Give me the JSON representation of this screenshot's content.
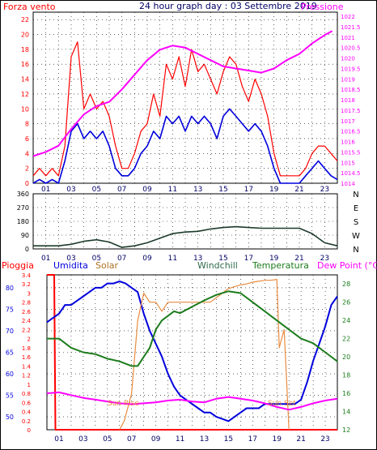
{
  "header": {
    "wind_title": "Forza vento",
    "graph_title": "24 hour graph day : 03 Settembre 2019",
    "pressure_title": "Pressione"
  },
  "legend": {
    "rain": "Pioggia",
    "humidity": "Umidita",
    "solar": "Solar",
    "windchill": "Windchill",
    "temperature": "Temperatura",
    "dewpoint": "Dew Point (°C)"
  },
  "annotations": {
    "sunrise": "Sun Rise",
    "sunset": "Sun Set"
  },
  "colors": {
    "wind": "#ff0000",
    "windavg": "#0000dd",
    "pressure": "#ff00ff",
    "direction": "#1c3c2c",
    "rain": "#ff0000",
    "humidity": "#0000dd",
    "solar": "#e88c40",
    "windchill": "#2e6b4c",
    "temperature": "#1c7c1c",
    "dewpoint": "#ff00ff",
    "grid": "#000000",
    "tick": "#000066"
  },
  "chart_data": [
    {
      "type": "line",
      "x_ticks": [
        "01",
        "03",
        "05",
        "07",
        "09",
        "11",
        "13",
        "15",
        "17",
        "19",
        "21",
        "23"
      ],
      "xlim": [
        0,
        24
      ],
      "y_left_ticks": [
        "0",
        "2",
        "4",
        "6",
        "8",
        "10",
        "12",
        "14",
        "16",
        "18",
        "20",
        "22"
      ],
      "ylim_left": [
        0,
        23
      ],
      "y_right_ticks": [
        "1014",
        "1014.5",
        "1015",
        "1015.5",
        "1016",
        "1016.5",
        "1017",
        "1017.5",
        "1018",
        "1018.5",
        "1019",
        "1019.5",
        "1020",
        "1020.5",
        "1021",
        "1021.5",
        "1022"
      ],
      "ylim_right": [
        1014,
        1022.2
      ],
      "grid": true,
      "series": [
        {
          "name": "Forza vento",
          "axis": "left",
          "x": [
            0,
            0.5,
            1,
            1.5,
            2,
            2.5,
            3,
            3.5,
            4,
            4.5,
            5,
            5.5,
            6,
            6.5,
            7,
            7.5,
            8,
            8.5,
            9,
            9.5,
            10,
            10.5,
            11,
            11.5,
            12,
            12.5,
            13,
            13.5,
            14,
            14.5,
            15,
            15.5,
            16,
            16.5,
            17,
            17.5,
            18,
            18.5,
            19,
            19.5,
            20,
            20.5,
            21,
            21.5,
            22,
            22.5,
            23,
            23.5,
            24
          ],
          "y": [
            1,
            2,
            1,
            2,
            1,
            5,
            17,
            19,
            10,
            12,
            10,
            11,
            9,
            5,
            2,
            2,
            4,
            7,
            8,
            12,
            9,
            16,
            14,
            17,
            13,
            18,
            15,
            16,
            14,
            12,
            15,
            17,
            16,
            13,
            11,
            14,
            12,
            9,
            4,
            1,
            1,
            1,
            1,
            2,
            4,
            5,
            5,
            4,
            3
          ]
        },
        {
          "name": "Vento medio",
          "axis": "left",
          "x": [
            0,
            0.5,
            1,
            1.5,
            2,
            2.5,
            3,
            3.5,
            4,
            4.5,
            5,
            5.5,
            6,
            6.5,
            7,
            7.5,
            8,
            8.5,
            9,
            9.5,
            10,
            10.5,
            11,
            11.5,
            12,
            12.5,
            13,
            13.5,
            14,
            14.5,
            15,
            15.5,
            16,
            16.5,
            17,
            17.5,
            18,
            18.5,
            19,
            19.5,
            20,
            20.5,
            21,
            21.5,
            22,
            22.5,
            23,
            23.5,
            24
          ],
          "y": [
            0,
            0.5,
            0,
            0.5,
            0,
            3,
            7,
            8,
            6,
            7,
            6,
            7,
            5,
            2,
            1,
            1,
            2,
            4,
            5,
            7,
            6,
            9,
            8,
            9,
            7,
            9,
            8,
            9,
            8,
            6,
            9,
            10,
            9,
            8,
            7,
            8,
            7,
            5,
            2,
            0,
            0,
            0,
            0,
            1,
            2,
            3,
            2,
            1,
            0.5
          ]
        },
        {
          "name": "Pressione",
          "axis": "right",
          "x": [
            0,
            1,
            2,
            3,
            4,
            5,
            6,
            7,
            8,
            9,
            10,
            11,
            12,
            13,
            14,
            15,
            16,
            17,
            18,
            19,
            20,
            21,
            22,
            23,
            23.6
          ],
          "y": [
            1015.3,
            1015.5,
            1015.8,
            1016.6,
            1017.3,
            1017.7,
            1017.9,
            1018.5,
            1019.2,
            1019.9,
            1020.4,
            1020.6,
            1020.5,
            1020.2,
            1019.9,
            1019.6,
            1019.5,
            1019.4,
            1019.3,
            1019.5,
            1019.9,
            1020.2,
            1020.7,
            1021.1,
            1021.3
          ]
        }
      ]
    },
    {
      "type": "line",
      "x_ticks": [
        "01",
        "03",
        "05",
        "07",
        "09",
        "11",
        "13",
        "15",
        "17",
        "19",
        "21",
        "23"
      ],
      "xlim": [
        0,
        24
      ],
      "y_left_ticks": [
        "0",
        "90",
        "180",
        "270",
        "360"
      ],
      "ylim": [
        0,
        360
      ],
      "y_right_labels": [
        "N",
        "W",
        "S",
        "E",
        "N"
      ],
      "grid": true,
      "series": [
        {
          "name": "Direzione vento",
          "x": [
            0,
            1,
            2,
            3,
            4,
            5,
            6,
            7,
            8,
            9,
            10,
            11,
            12,
            13,
            14,
            15,
            16,
            17,
            18,
            19,
            20,
            21,
            22,
            23,
            24
          ],
          "y": [
            20,
            20,
            20,
            30,
            50,
            60,
            45,
            10,
            20,
            40,
            70,
            100,
            110,
            115,
            130,
            140,
            145,
            140,
            135,
            135,
            135,
            135,
            100,
            40,
            20
          ]
        }
      ]
    },
    {
      "type": "line",
      "x_ticks": [
        "01",
        "03",
        "05",
        "07",
        "09",
        "11",
        "13",
        "15",
        "17",
        "19",
        "21",
        "23"
      ],
      "xlim": [
        0,
        24
      ],
      "y_rain_ticks": [
        "0",
        "0.2",
        "0.4",
        "0.6",
        "0.8",
        "1",
        "1.2",
        "1.4",
        "1.6",
        "1.8",
        "2",
        "2.2",
        "2.4",
        "2.6",
        "2.8",
        "3",
        "3.2",
        "3.4"
      ],
      "ylim_rain": [
        0,
        3.4
      ],
      "y_humidity_ticks": [
        "50",
        "55",
        "60",
        "65",
        "70",
        "75",
        "80"
      ],
      "ylim_humidity": [
        47,
        83
      ],
      "y_temperature_ticks": [
        "12",
        "14",
        "16",
        "18",
        "20",
        "22",
        "24",
        "26",
        "28"
      ],
      "ylim_temperature": [
        12,
        29
      ],
      "grid": true,
      "series": [
        {
          "name": "Pioggia",
          "axis": "rain",
          "x": [
            0,
            0.6,
            0.7,
            24
          ],
          "y": [
            3.4,
            3.4,
            0,
            0
          ]
        },
        {
          "name": "Umidita",
          "axis": "humidity",
          "x": [
            0,
            0.5,
            1,
            1.5,
            2,
            2.5,
            3,
            3.5,
            4,
            4.5,
            5,
            5.5,
            6,
            6.5,
            7,
            7.5,
            8,
            8.5,
            9,
            9.5,
            10,
            10.5,
            11,
            11.5,
            12,
            12.5,
            13,
            13.5,
            14,
            14.5,
            15,
            15.5,
            16,
            16.5,
            17,
            17.5,
            18,
            18.5,
            19,
            19.5,
            20,
            20.5,
            21,
            21.5,
            22,
            22.5,
            23,
            23.5,
            24
          ],
          "y": [
            72,
            73,
            74,
            76,
            76,
            77,
            78,
            79,
            80,
            80,
            81,
            81,
            81.5,
            81,
            80,
            79,
            74,
            70,
            67,
            64,
            60,
            57,
            55,
            54,
            53,
            52,
            51,
            51,
            50,
            49.5,
            49,
            50,
            51,
            52,
            52,
            52,
            53,
            53,
            53,
            53,
            53,
            53,
            54,
            58,
            63,
            67,
            71,
            76,
            78
          ]
        },
        {
          "name": "Solar",
          "axis": "temperature",
          "x": [
            6,
            6.4,
            7,
            7.5,
            8,
            8.5,
            9,
            9.5,
            10,
            10.5,
            11,
            11.5,
            12,
            12.5,
            13,
            13.5,
            14,
            14.5,
            15,
            15.5,
            16,
            16.5,
            17,
            17.5,
            18,
            18.5,
            19,
            19.2,
            19.6,
            20
          ],
          "y": [
            12,
            13,
            16,
            24,
            27,
            26,
            26,
            25,
            26,
            26,
            26,
            26,
            26,
            26,
            26,
            26,
            26.5,
            27,
            27.5,
            27.7,
            27.9,
            28,
            28.2,
            28.3,
            28.4,
            28.4,
            28.5,
            21,
            23,
            12
          ]
        },
        {
          "name": "Windchill",
          "axis": "temperature",
          "x": [
            0,
            1,
            2,
            3,
            4,
            5,
            6,
            7,
            7.5,
            8,
            8.5,
            9,
            9.5,
            10,
            10.5,
            11,
            12,
            13,
            14,
            15,
            16,
            17,
            18,
            19,
            20,
            21,
            22,
            23,
            24
          ],
          "y": [
            22,
            22,
            21,
            20.5,
            20.3,
            19.8,
            19.5,
            19,
            19,
            20,
            21,
            23,
            24,
            24.5,
            25,
            24.8,
            25.5,
            26.2,
            26.8,
            27.2,
            27,
            26,
            25,
            24,
            23,
            22,
            21.5,
            20.5,
            19.5
          ]
        },
        {
          "name": "Temperatura",
          "axis": "temperature",
          "x": [
            0,
            1,
            2,
            3,
            4,
            5,
            6,
            7,
            7.5,
            8,
            8.5,
            9,
            9.5,
            10,
            10.5,
            11,
            12,
            13,
            14,
            15,
            16,
            17,
            18,
            19,
            20,
            21,
            22,
            23,
            24
          ],
          "y": [
            22,
            22,
            21,
            20.5,
            20.3,
            19.8,
            19.5,
            19,
            19,
            20,
            21,
            23,
            24,
            24.5,
            25,
            24.8,
            25.5,
            26.2,
            26.8,
            27.2,
            27,
            26,
            25,
            24,
            23,
            22,
            21.5,
            20.5,
            19.5
          ]
        },
        {
          "name": "Dew Point",
          "axis": "temperature",
          "x": [
            0,
            1,
            2,
            3,
            4,
            5,
            6,
            7,
            8,
            9,
            10,
            11,
            12,
            13,
            14,
            15,
            16,
            17,
            18,
            19,
            20,
            21,
            22,
            23,
            24
          ],
          "y": [
            16,
            16.1,
            15.8,
            15.5,
            15.3,
            15.1,
            14.9,
            14.8,
            14.9,
            15,
            15.2,
            15.3,
            15.1,
            15,
            15.4,
            15.6,
            15.4,
            15.2,
            14.9,
            14.5,
            14.2,
            14.5,
            14.9,
            15.2,
            15.4
          ]
        }
      ]
    }
  ]
}
